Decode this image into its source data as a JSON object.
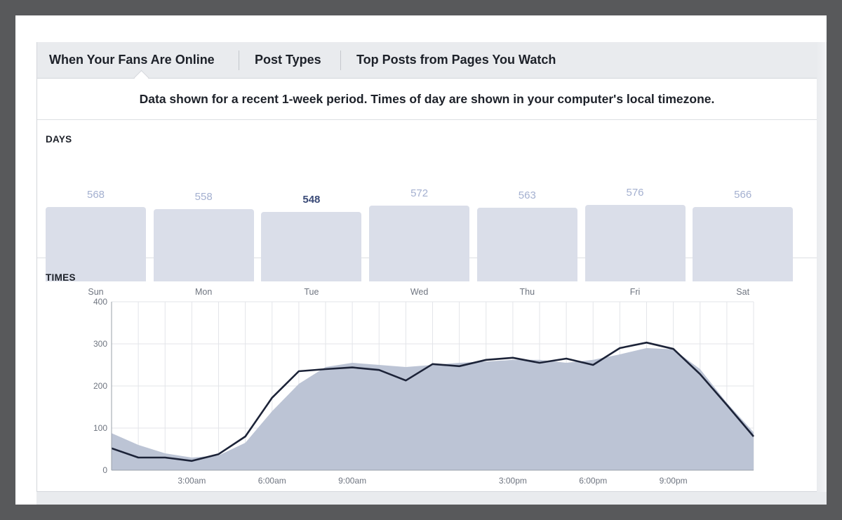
{
  "tabs": [
    {
      "label": "When Your Fans Are Online"
    },
    {
      "label": "Post Types"
    },
    {
      "label": "Top Posts from Pages You Watch"
    }
  ],
  "info_text": "Data shown for a recent 1-week period. Times of day are shown in your computer's local timezone.",
  "days_section": {
    "title": "DAYS"
  },
  "times_section": {
    "title": "TIMES"
  },
  "chart_data": [
    {
      "type": "bar",
      "title": "DAYS",
      "categories": [
        "Sun",
        "Mon",
        "Tue",
        "Wed",
        "Thu",
        "Fri",
        "Sat"
      ],
      "values": [
        568,
        558,
        548,
        572,
        563,
        576,
        566
      ],
      "highlighted": "Tue",
      "colors": {
        "bar": "#dadee9",
        "label": "#a4b0d0",
        "label_active": "#3b4b78"
      }
    },
    {
      "type": "line",
      "title": "TIMES",
      "xlabel": "",
      "ylabel": "",
      "ylim": [
        0,
        400
      ],
      "yticks": [
        0,
        100,
        200,
        300,
        400
      ],
      "x_tick_labels": [
        "3:00am",
        "6:00am",
        "9:00am",
        "3:00pm",
        "6:00pm",
        "9:00pm"
      ],
      "x_tick_hours": [
        3,
        6,
        9,
        15,
        18,
        21
      ],
      "grid": true,
      "x_hours": [
        0,
        1,
        2,
        3,
        4,
        5,
        6,
        7,
        8,
        9,
        10,
        11,
        12,
        13,
        14,
        15,
        16,
        17,
        18,
        19,
        20,
        21,
        22,
        23,
        24
      ],
      "series": [
        {
          "type": "area",
          "color": "#bcc4d5",
          "values": [
            88,
            60,
            40,
            30,
            35,
            65,
            140,
            205,
            245,
            255,
            250,
            245,
            250,
            255,
            258,
            262,
            262,
            255,
            262,
            275,
            290,
            287,
            240,
            160,
            90
          ]
        },
        {
          "type": "line",
          "color": "#1c2338",
          "values": [
            52,
            30,
            30,
            22,
            38,
            80,
            172,
            235,
            240,
            244,
            238,
            213,
            252,
            247,
            262,
            267,
            255,
            265,
            250,
            290,
            303,
            288,
            228,
            155,
            80
          ]
        }
      ]
    }
  ]
}
